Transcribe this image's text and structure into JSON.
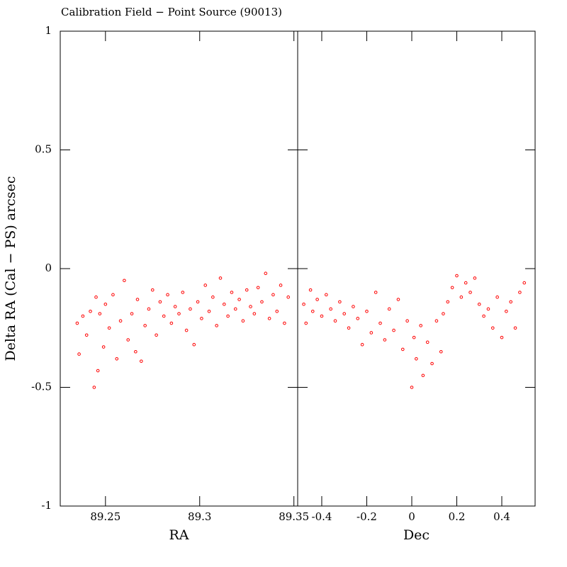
{
  "chart_data": [
    {
      "type": "scatter",
      "title": "Calibration Field − Point Source (90013)",
      "y_label": "Delta RA (Cal − PS) arcsec",
      "x_label": "RA",
      "color": "#ff0000",
      "xlim": [
        89.226,
        89.352
      ],
      "xticks": [
        89.25,
        89.3,
        89.35
      ],
      "ylim": [
        -1,
        1
      ],
      "yticks": [
        -1,
        -0.5,
        0,
        0.5,
        1
      ],
      "x": [
        89.235,
        89.236,
        89.238,
        89.24,
        89.242,
        89.244,
        89.245,
        89.246,
        89.247,
        89.249,
        89.25,
        89.252,
        89.254,
        89.256,
        89.258,
        89.26,
        89.262,
        89.264,
        89.266,
        89.267,
        89.269,
        89.271,
        89.273,
        89.275,
        89.277,
        89.279,
        89.281,
        89.283,
        89.285,
        89.287,
        89.289,
        89.291,
        89.293,
        89.295,
        89.297,
        89.299,
        89.301,
        89.303,
        89.305,
        89.307,
        89.309,
        89.311,
        89.313,
        89.315,
        89.317,
        89.319,
        89.321,
        89.323,
        89.325,
        89.327,
        89.329,
        89.331,
        89.333,
        89.335,
        89.337,
        89.339,
        89.341,
        89.343,
        89.345,
        89.347
      ],
      "values": [
        -0.23,
        -0.36,
        -0.2,
        -0.28,
        -0.18,
        -0.5,
        -0.12,
        -0.43,
        -0.19,
        -0.33,
        -0.15,
        -0.25,
        -0.11,
        -0.38,
        -0.22,
        -0.05,
        -0.3,
        -0.19,
        -0.35,
        -0.13,
        -0.39,
        -0.24,
        -0.17,
        -0.09,
        -0.28,
        -0.14,
        -0.2,
        -0.11,
        -0.23,
        -0.16,
        -0.19,
        -0.1,
        -0.26,
        -0.17,
        -0.32,
        -0.14,
        -0.21,
        -0.07,
        -0.18,
        -0.12,
        -0.24,
        -0.04,
        -0.15,
        -0.2,
        -0.1,
        -0.17,
        -0.13,
        -0.22,
        -0.09,
        -0.16,
        -0.19,
        -0.08,
        -0.14,
        -0.02,
        -0.21,
        -0.11,
        -0.18,
        -0.07,
        -0.23,
        -0.12
      ]
    },
    {
      "type": "scatter",
      "x_label": "Dec",
      "color": "#ff0000",
      "xlim": [
        -0.507,
        0.548
      ],
      "xticks": [
        -0.4,
        -0.2,
        0,
        0.2,
        0.4
      ],
      "ylim": [
        -1,
        1
      ],
      "x": [
        -0.48,
        -0.47,
        -0.45,
        -0.44,
        -0.42,
        -0.4,
        -0.38,
        -0.36,
        -0.34,
        -0.32,
        -0.3,
        -0.28,
        -0.26,
        -0.24,
        -0.22,
        -0.2,
        -0.18,
        -0.16,
        -0.14,
        -0.12,
        -0.1,
        -0.08,
        -0.06,
        -0.04,
        -0.02,
        0,
        0.01,
        0.02,
        0.04,
        0.05,
        0.07,
        0.09,
        0.11,
        0.13,
        0.14,
        0.16,
        0.18,
        0.2,
        0.22,
        0.24,
        0.26,
        0.28,
        0.3,
        0.32,
        0.34,
        0.36,
        0.38,
        0.4,
        0.42,
        0.44,
        0.46,
        0.48,
        0.5
      ],
      "values": [
        -0.15,
        -0.23,
        -0.09,
        -0.18,
        -0.13,
        -0.2,
        -0.11,
        -0.17,
        -0.22,
        -0.14,
        -0.19,
        -0.25,
        -0.16,
        -0.21,
        -0.32,
        -0.18,
        -0.27,
        -0.1,
        -0.23,
        -0.3,
        -0.17,
        -0.26,
        -0.13,
        -0.34,
        -0.22,
        -0.5,
        -0.29,
        -0.38,
        -0.24,
        -0.45,
        -0.31,
        -0.4,
        -0.22,
        -0.35,
        -0.19,
        -0.14,
        -0.08,
        -0.03,
        -0.12,
        -0.06,
        -0.1,
        -0.04,
        -0.15,
        -0.2,
        -0.17,
        -0.25,
        -0.12,
        -0.29,
        -0.18,
        -0.14,
        -0.25,
        -0.1,
        -0.06
      ]
    }
  ]
}
